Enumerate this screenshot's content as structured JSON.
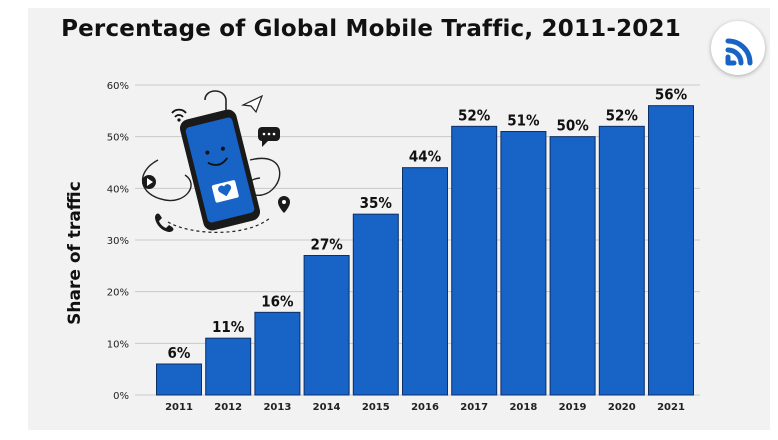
{
  "colors": {
    "bar": "#1863c6",
    "bar_edge": "#0c2f66",
    "grid": "#c9c9c9",
    "panel": "#f2f2f2"
  },
  "logo_icon": "wifi-signal-icon",
  "illustration_icon": "smartphone-illustration",
  "chart_data": {
    "type": "bar",
    "title": "Percentage of Global Mobile Traffic, 2011-2021",
    "xlabel": "",
    "ylabel": "Share of traffic",
    "categories": [
      "2011",
      "2012",
      "2013",
      "2014",
      "2015",
      "2016",
      "2017",
      "2018",
      "2019",
      "2020",
      "2021"
    ],
    "values": [
      6,
      11,
      16,
      27,
      35,
      44,
      52,
      51,
      50,
      52,
      56
    ],
    "value_labels": [
      "6%",
      "11%",
      "16%",
      "27%",
      "35%",
      "44%",
      "52%",
      "51%",
      "50%",
      "52%",
      "56%"
    ],
    "ylim": [
      0,
      60
    ],
    "yticks": [
      "0%",
      "10%",
      "20%",
      "30%",
      "40%",
      "50%",
      "60%"
    ],
    "grid": true,
    "legend": "none"
  }
}
